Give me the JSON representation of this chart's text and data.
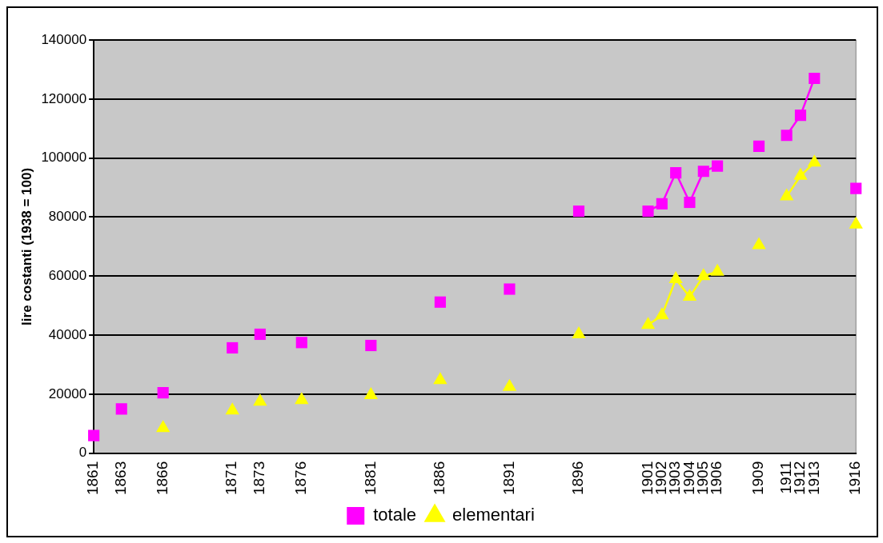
{
  "chart_data": {
    "type": "line",
    "ylabel": "lire costanti (1938 = 100)",
    "categories": [
      "1861",
      null,
      "1863",
      null,
      null,
      "1866",
      null,
      null,
      null,
      null,
      "1871",
      null,
      "1873",
      null,
      null,
      "1876",
      null,
      null,
      null,
      null,
      "1881",
      null,
      null,
      null,
      null,
      "1886",
      null,
      null,
      null,
      null,
      "1891",
      null,
      null,
      null,
      null,
      "1896",
      null,
      null,
      null,
      null,
      "1901",
      "1902",
      "1903",
      "1904",
      "1905",
      "1906",
      null,
      null,
      "1909",
      null,
      "1911",
      "1912",
      "1913",
      null,
      null,
      "1916"
    ],
    "series": [
      {
        "name": "totale",
        "color": "#ff00ff",
        "marker": "square",
        "values": [
          6000,
          null,
          15000,
          null,
          null,
          20500,
          null,
          null,
          null,
          null,
          35700,
          null,
          40300,
          null,
          null,
          37500,
          null,
          null,
          null,
          null,
          36500,
          null,
          null,
          null,
          null,
          51200,
          null,
          null,
          null,
          null,
          55600,
          null,
          null,
          null,
          null,
          82000,
          null,
          null,
          null,
          null,
          82000,
          84500,
          95000,
          85000,
          95500,
          97300,
          null,
          null,
          104000,
          null,
          107700,
          114500,
          127000,
          null,
          null,
          89700
        ]
      },
      {
        "name": "elementari",
        "color": "#ffff00",
        "marker": "triangle",
        "values": [
          null,
          null,
          null,
          null,
          null,
          8500,
          null,
          null,
          null,
          null,
          14500,
          null,
          17500,
          null,
          null,
          18000,
          null,
          null,
          null,
          null,
          19700,
          null,
          null,
          null,
          null,
          24800,
          null,
          null,
          null,
          null,
          22500,
          null,
          null,
          null,
          null,
          40300,
          null,
          null,
          null,
          null,
          43500,
          46700,
          59000,
          53000,
          60000,
          61500,
          null,
          null,
          70500,
          null,
          87000,
          94000,
          98500,
          null,
          null,
          77500
        ]
      }
    ],
    "ylim": [
      0,
      140000
    ],
    "yticks": [
      0,
      20000,
      40000,
      60000,
      80000,
      100000,
      120000,
      140000
    ],
    "grid": "y",
    "legend": "bottom"
  }
}
